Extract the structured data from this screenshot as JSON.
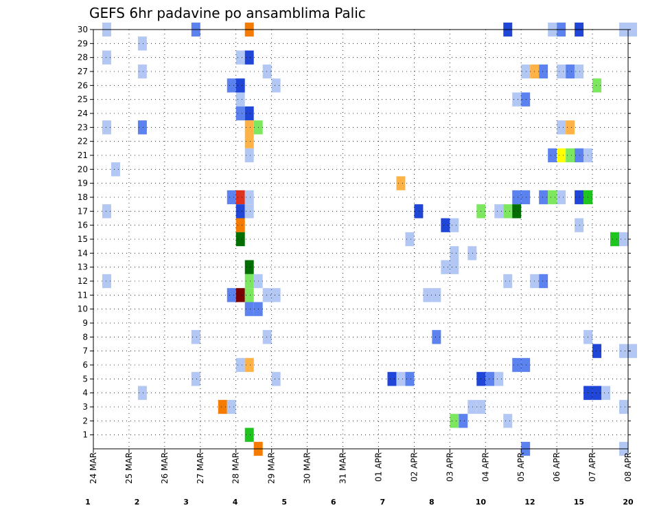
{
  "chart_data": {
    "type": "heatmap",
    "title": "GEFS 6hr padavine po ansamblima Palic",
    "y_ticks": [
      "1",
      "2",
      "3",
      "4",
      "5",
      "6",
      "7",
      "8",
      "9",
      "10",
      "11",
      "12",
      "13",
      "14",
      "15",
      "16",
      "17",
      "18",
      "19",
      "20",
      "21",
      "22",
      "23",
      "24",
      "25",
      "26",
      "27",
      "28",
      "29",
      "30"
    ],
    "x_ticks": [
      "24 MAR",
      "25 MAR",
      "26 MAR",
      "27 MAR",
      "28 MAR",
      "29 MAR",
      "30 MAR",
      "31 MAR",
      "01 APR",
      "02 APR",
      "03 APR",
      "04 APR",
      "05 APR",
      "06 APR",
      "07 APR",
      "08 APR"
    ],
    "x_range_days": [
      0,
      15
    ],
    "step_hours": 6,
    "grid": true,
    "colorbar": {
      "labels": [
        "1",
        "2",
        "3",
        "4",
        "5",
        "6",
        "7",
        "8",
        "10",
        "12",
        "15",
        "20"
      ],
      "colors": [
        "#b3c7f5",
        "#5b82ee",
        "#1f46d6",
        "#7de85f",
        "#1fc41f",
        "#006e00",
        "#ffff00",
        "#ffb347",
        "#f57c00",
        "#e0301e",
        "#7a0000"
      ]
    },
    "cells": [
      {
        "x": 0.25,
        "y": 30,
        "c": 0
      },
      {
        "x": 2.75,
        "y": 30,
        "c": 1
      },
      {
        "x": 4.25,
        "y": 30,
        "c": 8
      },
      {
        "x": 11.5,
        "y": 30,
        "c": 2
      },
      {
        "x": 12.75,
        "y": 30,
        "c": 0
      },
      {
        "x": 13.0,
        "y": 30,
        "c": 1
      },
      {
        "x": 13.5,
        "y": 30,
        "c": 2
      },
      {
        "x": 14.75,
        "y": 30,
        "c": 0
      },
      {
        "x": 15.0,
        "y": 30,
        "c": 0
      },
      {
        "x": 1.25,
        "y": 29,
        "c": 0
      },
      {
        "x": 0.25,
        "y": 28,
        "c": 0
      },
      {
        "x": 4.0,
        "y": 28,
        "c": 0
      },
      {
        "x": 4.25,
        "y": 28,
        "c": 2
      },
      {
        "x": 1.25,
        "y": 27,
        "c": 0
      },
      {
        "x": 4.75,
        "y": 27,
        "c": 0
      },
      {
        "x": 12.0,
        "y": 27,
        "c": 0
      },
      {
        "x": 12.25,
        "y": 27,
        "c": 7
      },
      {
        "x": 12.5,
        "y": 27,
        "c": 1
      },
      {
        "x": 13.0,
        "y": 27,
        "c": 0
      },
      {
        "x": 13.25,
        "y": 27,
        "c": 1
      },
      {
        "x": 13.5,
        "y": 27,
        "c": 0
      },
      {
        "x": 3.75,
        "y": 26,
        "c": 1
      },
      {
        "x": 4.0,
        "y": 26,
        "c": 2
      },
      {
        "x": 5.0,
        "y": 26,
        "c": 0
      },
      {
        "x": 14.0,
        "y": 26,
        "c": 3
      },
      {
        "x": 4.0,
        "y": 25,
        "c": 0
      },
      {
        "x": 11.75,
        "y": 25,
        "c": 0
      },
      {
        "x": 12.0,
        "y": 25,
        "c": 1
      },
      {
        "x": 4.0,
        "y": 24,
        "c": 1
      },
      {
        "x": 4.25,
        "y": 24,
        "c": 2
      },
      {
        "x": 0.25,
        "y": 23,
        "c": 0
      },
      {
        "x": 1.25,
        "y": 23,
        "c": 1
      },
      {
        "x": 4.25,
        "y": 23,
        "c": 7
      },
      {
        "x": 4.5,
        "y": 23,
        "c": 3
      },
      {
        "x": 13.0,
        "y": 23,
        "c": 0
      },
      {
        "x": 13.25,
        "y": 23,
        "c": 7
      },
      {
        "x": 4.25,
        "y": 22,
        "c": 7
      },
      {
        "x": 4.25,
        "y": 21,
        "c": 0
      },
      {
        "x": 12.75,
        "y": 21,
        "c": 1
      },
      {
        "x": 13.0,
        "y": 21,
        "c": 6
      },
      {
        "x": 13.25,
        "y": 21,
        "c": 3
      },
      {
        "x": 13.5,
        "y": 21,
        "c": 1
      },
      {
        "x": 13.75,
        "y": 21,
        "c": 0
      },
      {
        "x": 0.5,
        "y": 20,
        "c": 0
      },
      {
        "x": 8.5,
        "y": 19,
        "c": 7
      },
      {
        "x": 3.75,
        "y": 18,
        "c": 1
      },
      {
        "x": 4.0,
        "y": 18,
        "c": 9
      },
      {
        "x": 4.25,
        "y": 18,
        "c": 0
      },
      {
        "x": 11.75,
        "y": 18,
        "c": 1
      },
      {
        "x": 12.0,
        "y": 18,
        "c": 1
      },
      {
        "x": 12.5,
        "y": 18,
        "c": 1
      },
      {
        "x": 12.75,
        "y": 18,
        "c": 3
      },
      {
        "x": 13.0,
        "y": 18,
        "c": 0
      },
      {
        "x": 13.5,
        "y": 18,
        "c": 2
      },
      {
        "x": 13.75,
        "y": 18,
        "c": 4
      },
      {
        "x": 0.25,
        "y": 17,
        "c": 0
      },
      {
        "x": 4.0,
        "y": 17,
        "c": 2
      },
      {
        "x": 4.25,
        "y": 17,
        "c": 0
      },
      {
        "x": 9.0,
        "y": 17,
        "c": 2
      },
      {
        "x": 10.75,
        "y": 17,
        "c": 3
      },
      {
        "x": 11.25,
        "y": 17,
        "c": 0
      },
      {
        "x": 11.5,
        "y": 17,
        "c": 3
      },
      {
        "x": 11.75,
        "y": 17,
        "c": 5
      },
      {
        "x": 4.0,
        "y": 16,
        "c": 8
      },
      {
        "x": 9.75,
        "y": 16,
        "c": 2
      },
      {
        "x": 10.0,
        "y": 16,
        "c": 0
      },
      {
        "x": 13.5,
        "y": 16,
        "c": 0
      },
      {
        "x": 4.0,
        "y": 15,
        "c": 5
      },
      {
        "x": 8.75,
        "y": 15,
        "c": 0
      },
      {
        "x": 14.5,
        "y": 15,
        "c": 4
      },
      {
        "x": 14.75,
        "y": 15,
        "c": 0
      },
      {
        "x": 10.0,
        "y": 14,
        "c": 0
      },
      {
        "x": 10.5,
        "y": 14,
        "c": 0
      },
      {
        "x": 4.25,
        "y": 13,
        "c": 5
      },
      {
        "x": 9.75,
        "y": 13,
        "c": 0
      },
      {
        "x": 10.0,
        "y": 13,
        "c": 0
      },
      {
        "x": 0.25,
        "y": 12,
        "c": 0
      },
      {
        "x": 4.25,
        "y": 12,
        "c": 3
      },
      {
        "x": 4.5,
        "y": 12,
        "c": 0
      },
      {
        "x": 11.5,
        "y": 12,
        "c": 0
      },
      {
        "x": 12.25,
        "y": 12,
        "c": 0
      },
      {
        "x": 12.5,
        "y": 12,
        "c": 1
      },
      {
        "x": 3.75,
        "y": 11,
        "c": 1
      },
      {
        "x": 4.0,
        "y": 11,
        "c": 10
      },
      {
        "x": 4.25,
        "y": 11,
        "c": 3
      },
      {
        "x": 4.75,
        "y": 11,
        "c": 0
      },
      {
        "x": 5.0,
        "y": 11,
        "c": 0
      },
      {
        "x": 9.25,
        "y": 11,
        "c": 0
      },
      {
        "x": 9.5,
        "y": 11,
        "c": 0
      },
      {
        "x": 4.25,
        "y": 10,
        "c": 1
      },
      {
        "x": 4.5,
        "y": 10,
        "c": 1
      },
      {
        "x": 2.75,
        "y": 8,
        "c": 0
      },
      {
        "x": 4.75,
        "y": 8,
        "c": 0
      },
      {
        "x": 9.5,
        "y": 8,
        "c": 1
      },
      {
        "x": 13.75,
        "y": 8,
        "c": 0
      },
      {
        "x": 14.0,
        "y": 7,
        "c": 2
      },
      {
        "x": 14.75,
        "y": 7,
        "c": 0
      },
      {
        "x": 15.0,
        "y": 7,
        "c": 0
      },
      {
        "x": 4.0,
        "y": 6,
        "c": 0
      },
      {
        "x": 4.25,
        "y": 6,
        "c": 7
      },
      {
        "x": 11.75,
        "y": 6,
        "c": 1
      },
      {
        "x": 12.0,
        "y": 6,
        "c": 1
      },
      {
        "x": 2.75,
        "y": 5,
        "c": 0
      },
      {
        "x": 5.0,
        "y": 5,
        "c": 0
      },
      {
        "x": 8.25,
        "y": 5,
        "c": 2
      },
      {
        "x": 8.5,
        "y": 5,
        "c": 0
      },
      {
        "x": 8.75,
        "y": 5,
        "c": 1
      },
      {
        "x": 10.75,
        "y": 5,
        "c": 2
      },
      {
        "x": 11.0,
        "y": 5,
        "c": 1
      },
      {
        "x": 11.25,
        "y": 5,
        "c": 0
      },
      {
        "x": 1.25,
        "y": 4,
        "c": 0
      },
      {
        "x": 13.75,
        "y": 4,
        "c": 2
      },
      {
        "x": 14.0,
        "y": 4,
        "c": 2
      },
      {
        "x": 14.25,
        "y": 4,
        "c": 0
      },
      {
        "x": 3.5,
        "y": 3,
        "c": 8
      },
      {
        "x": 3.75,
        "y": 3,
        "c": 0
      },
      {
        "x": 10.5,
        "y": 3,
        "c": 0
      },
      {
        "x": 10.75,
        "y": 3,
        "c": 0
      },
      {
        "x": 14.75,
        "y": 3,
        "c": 0
      },
      {
        "x": 10.0,
        "y": 2,
        "c": 3
      },
      {
        "x": 10.25,
        "y": 2,
        "c": 1
      },
      {
        "x": 11.5,
        "y": 2,
        "c": 0
      },
      {
        "x": 4.25,
        "y": 1,
        "c": 4
      },
      {
        "x": 4.5,
        "y": 0,
        "c": 8
      },
      {
        "x": 12.0,
        "y": 0,
        "c": 1
      },
      {
        "x": 14.75,
        "y": 0,
        "c": 0
      }
    ]
  }
}
